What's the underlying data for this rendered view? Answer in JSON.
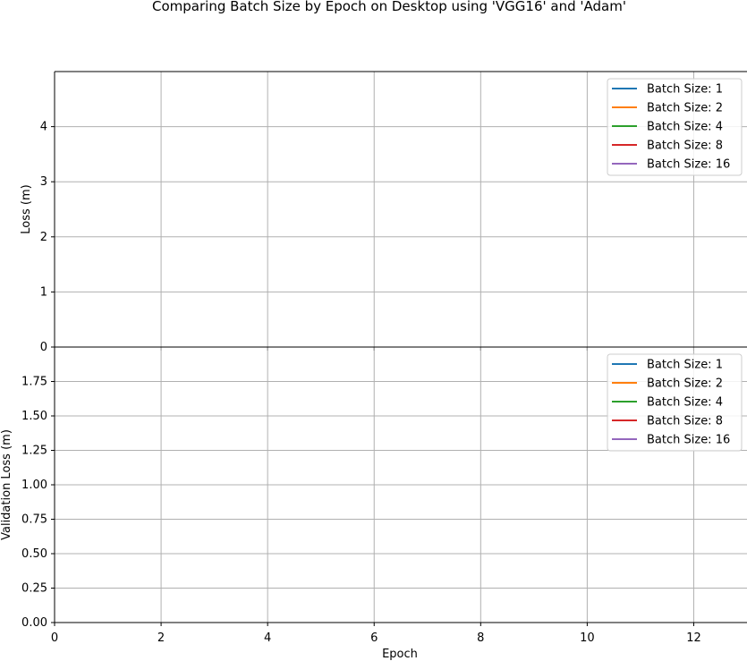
{
  "chart_data": {
    "type": "line",
    "title": "Comparing Batch Size by Epoch on Desktop using 'VGG16' and 'Adam'",
    "xlabel": "Epoch",
    "xlim": [
      0,
      13
    ],
    "xticks": [
      0,
      2,
      4,
      6,
      8,
      10,
      12
    ],
    "legend_placement": "top-right",
    "colors": [
      "#1f77b4",
      "#ff7f0e",
      "#2ca02c",
      "#d62728",
      "#9467bd"
    ],
    "panels": [
      {
        "name": "loss",
        "ylabel": "Loss (m)",
        "ylim": [
          0,
          5
        ],
        "yticks": [
          "0",
          "1",
          "2",
          "3",
          "4"
        ],
        "ytick_values": [
          0,
          1,
          2,
          3,
          4
        ],
        "grid": true,
        "series": [
          {
            "name": "Batch Size: 1",
            "x": [],
            "values": []
          },
          {
            "name": "Batch Size: 2",
            "x": [],
            "values": []
          },
          {
            "name": "Batch Size: 4",
            "x": [],
            "values": []
          },
          {
            "name": "Batch Size: 8",
            "x": [],
            "values": []
          },
          {
            "name": "Batch Size: 16",
            "x": [],
            "values": []
          }
        ]
      },
      {
        "name": "validation-loss",
        "ylabel": "Validation Loss (m)",
        "ylim": [
          0,
          2
        ],
        "yticks": [
          "0.00",
          "0.25",
          "0.50",
          "0.75",
          "1.00",
          "1.25",
          "1.50",
          "1.75"
        ],
        "ytick_values": [
          0,
          0.25,
          0.5,
          0.75,
          1.0,
          1.25,
          1.5,
          1.75
        ],
        "grid": true,
        "series": [
          {
            "name": "Batch Size: 1",
            "x": [],
            "values": []
          },
          {
            "name": "Batch Size: 2",
            "x": [],
            "values": []
          },
          {
            "name": "Batch Size: 4",
            "x": [],
            "values": []
          },
          {
            "name": "Batch Size: 8",
            "x": [],
            "values": []
          },
          {
            "name": "Batch Size: 16",
            "x": [],
            "values": []
          }
        ]
      }
    ]
  }
}
